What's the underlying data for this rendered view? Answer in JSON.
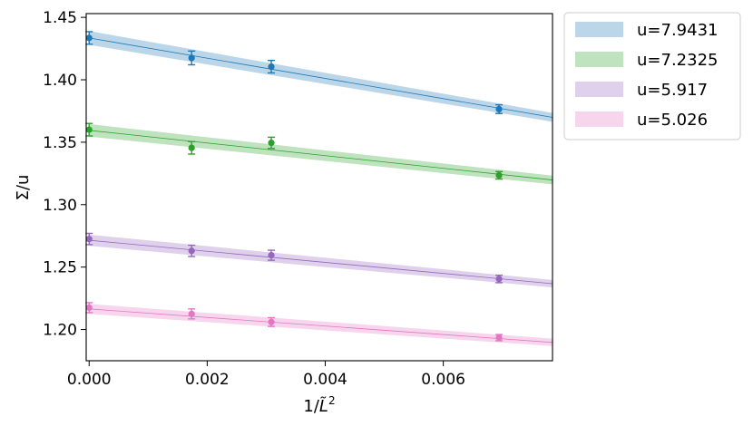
{
  "chart_data": {
    "type": "line",
    "xlabel": "1/L̃²",
    "ylabel": "Σ/u",
    "xlim": [
      -5e-05,
      0.00785
    ],
    "ylim": [
      1.175,
      1.453
    ],
    "x_ticks": [
      0.0,
      0.002,
      0.004,
      0.006
    ],
    "x_tick_labels": [
      "0.000",
      "0.002",
      "0.004",
      "0.006"
    ],
    "y_ticks": [
      1.2,
      1.25,
      1.3,
      1.35,
      1.4,
      1.45
    ],
    "y_tick_labels": [
      "1.20",
      "1.25",
      "1.30",
      "1.35",
      "1.40",
      "1.45"
    ],
    "grid": false,
    "legend_placement": "outside-top-right",
    "series": [
      {
        "name": "u=7.9431",
        "color": "#1f77b4",
        "band_color": "#aecde8",
        "points": [
          {
            "x": 0.0,
            "y": 1.4335,
            "err": 0.005
          },
          {
            "x": 0.001736,
            "y": 1.4175,
            "err": 0.0055
          },
          {
            "x": 0.003086,
            "y": 1.4105,
            "err": 0.005
          },
          {
            "x": 0.006944,
            "y": 1.3765,
            "err": 0.0035
          }
        ],
        "fit": {
          "x0": 0.0,
          "y0": 1.4335,
          "x1": 0.0079,
          "y1": 1.3695,
          "band_half_width0": 0.0055,
          "band_half_width1": 0.0035
        }
      },
      {
        "name": "u=7.2325",
        "color": "#2ca02c",
        "band_color": "#b3e0b0",
        "points": [
          {
            "x": 0.0,
            "y": 1.36,
            "err": 0.005
          },
          {
            "x": 0.001736,
            "y": 1.3455,
            "err": 0.005
          },
          {
            "x": 0.003086,
            "y": 1.3495,
            "err": 0.0045
          },
          {
            "x": 0.006944,
            "y": 1.3235,
            "err": 0.003
          }
        ],
        "fit": {
          "x0": 0.0,
          "y0": 1.3595,
          "x1": 0.0079,
          "y1": 1.3195,
          "band_half_width0": 0.005,
          "band_half_width1": 0.0035
        }
      },
      {
        "name": "u=5.917",
        "color": "#9467bd",
        "band_color": "#ddcbeb",
        "points": [
          {
            "x": 0.0,
            "y": 1.2725,
            "err": 0.0045
          },
          {
            "x": 0.001736,
            "y": 1.263,
            "err": 0.0045
          },
          {
            "x": 0.003086,
            "y": 1.2595,
            "err": 0.004
          },
          {
            "x": 0.006944,
            "y": 1.2405,
            "err": 0.003
          }
        ],
        "fit": {
          "x0": 0.0,
          "y0": 1.2715,
          "x1": 0.0079,
          "y1": 1.2365,
          "band_half_width0": 0.0045,
          "band_half_width1": 0.003
        }
      },
      {
        "name": "u=5.026",
        "color": "#e377c2",
        "band_color": "#f7cbe8",
        "points": [
          {
            "x": 0.0,
            "y": 1.2175,
            "err": 0.004
          },
          {
            "x": 0.001736,
            "y": 1.2125,
            "err": 0.004
          },
          {
            "x": 0.003086,
            "y": 1.206,
            "err": 0.0035
          },
          {
            "x": 0.006944,
            "y": 1.1935,
            "err": 0.0025
          }
        ],
        "fit": {
          "x0": 0.0,
          "y0": 1.2165,
          "x1": 0.0079,
          "y1": 1.1895,
          "band_half_width0": 0.004,
          "band_half_width1": 0.003
        }
      }
    ]
  }
}
